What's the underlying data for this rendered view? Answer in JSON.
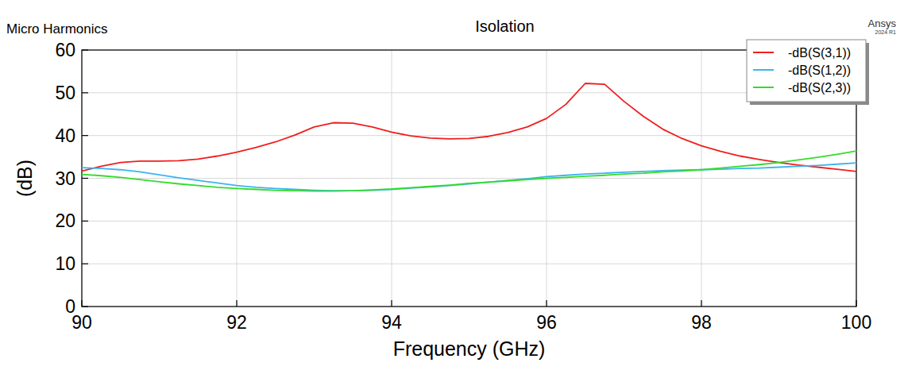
{
  "chart_data": {
    "type": "line",
    "title": "Isolation",
    "annotations": [
      "Micro Harmonics",
      "Ansys",
      "2024 R1"
    ],
    "x_label": "Frequency (GHz)",
    "y_label": "(dB)",
    "xlim": [
      90,
      100
    ],
    "xticks": [
      90,
      92,
      94,
      96,
      98,
      100
    ],
    "ylim": [
      0,
      60
    ],
    "yticks": [
      0,
      10,
      20,
      30,
      40,
      50,
      60
    ],
    "grid": true,
    "legend": "top-right",
    "x": [
      90,
      90.25,
      90.5,
      90.75,
      91,
      91.25,
      91.5,
      91.75,
      92,
      92.25,
      92.5,
      92.75,
      93,
      93.25,
      93.5,
      93.75,
      94,
      94.25,
      94.5,
      94.75,
      95,
      95.25,
      95.5,
      95.75,
      96,
      96.25,
      96.5,
      96.75,
      97,
      97.25,
      97.5,
      97.75,
      98,
      98.25,
      98.5,
      98.75,
      99,
      99.25,
      99.5,
      99.75,
      100
    ],
    "series": [
      {
        "name": "-dB(S(3,1))",
        "color": "#f01e1e",
        "values": [
          31.7,
          32.8,
          33.7,
          34.0,
          34.0,
          34.1,
          34.5,
          35.2,
          36.1,
          37.2,
          38.5,
          40.1,
          42.0,
          43.0,
          42.9,
          42.0,
          40.8,
          39.9,
          39.4,
          39.2,
          39.3,
          39.8,
          40.7,
          42.0,
          44.0,
          47.3,
          52.2,
          52.0,
          48.0,
          44.5,
          41.5,
          39.3,
          37.6,
          36.3,
          35.2,
          34.4,
          33.7,
          33.1,
          32.6,
          32.1,
          31.6
        ]
      },
      {
        "name": "-dB(S(1,2))",
        "color": "#3cb4f0",
        "values": [
          32.5,
          32.3,
          32.0,
          31.5,
          30.8,
          30.1,
          29.5,
          28.9,
          28.3,
          27.9,
          27.6,
          27.4,
          27.2,
          27.1,
          27.1,
          27.2,
          27.4,
          27.7,
          28.0,
          28.3,
          28.7,
          29.1,
          29.5,
          29.9,
          30.4,
          30.7,
          31.0,
          31.2,
          31.4,
          31.6,
          31.8,
          31.9,
          32.0,
          32.1,
          32.3,
          32.4,
          32.6,
          32.8,
          33.0,
          33.3,
          33.6
        ]
      },
      {
        "name": "-dB(S(2,3))",
        "color": "#33dc2a",
        "values": [
          30.9,
          30.6,
          30.2,
          29.7,
          29.2,
          28.7,
          28.3,
          27.9,
          27.6,
          27.4,
          27.2,
          27.1,
          27.0,
          27.0,
          27.1,
          27.3,
          27.5,
          27.8,
          28.1,
          28.4,
          28.8,
          29.1,
          29.4,
          29.7,
          30.0,
          30.2,
          30.5,
          30.7,
          31.0,
          31.2,
          31.5,
          31.7,
          32.0,
          32.4,
          32.8,
          33.2,
          33.7,
          34.3,
          34.9,
          35.6,
          36.4
        ]
      }
    ]
  }
}
